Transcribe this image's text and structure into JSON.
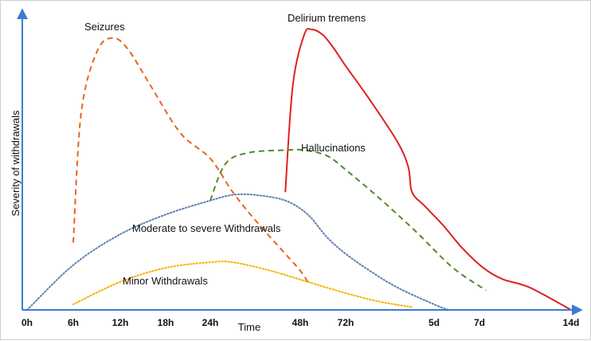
{
  "chart_data": {
    "type": "line",
    "title": "",
    "xlabel": "Time",
    "ylabel": "Severity of withdrawals",
    "x_ticks": [
      "0h",
      "6h",
      "12h",
      "18h",
      "24h",
      "48h",
      "72h",
      "5d",
      "7d",
      "14d"
    ],
    "x_tick_positions": [
      0,
      6,
      12,
      18,
      24,
      48,
      72,
      120,
      168,
      336
    ],
    "ylim": [
      0,
      100
    ],
    "grid": false,
    "legend": "none",
    "series": [
      {
        "name": "Seizures",
        "style": "dashed",
        "color": "#e8641e",
        "x": [
          6,
          7,
          9,
          11,
          13,
          16,
          20,
          24,
          30,
          36,
          44,
          48,
          52
        ],
        "y": [
          24,
          70,
          92,
          97,
          93,
          80,
          63,
          54,
          42,
          32,
          20,
          14,
          10
        ]
      },
      {
        "name": "Delirium tremens",
        "style": "solid",
        "color": "#e02020",
        "x": [
          44,
          46,
          50,
          54,
          60,
          66,
          72,
          85,
          100,
          106,
          108,
          115,
          130,
          150,
          175,
          210,
          260,
          336
        ],
        "y": [
          42,
          80,
          98,
          100,
          98,
          93,
          87,
          75,
          60,
          51,
          42,
          37,
          30,
          22,
          15,
          11,
          8,
          0
        ]
      },
      {
        "name": "Hallucinations",
        "style": "dashed",
        "color": "#4e8a2c",
        "x": [
          24,
          28,
          34,
          44,
          50,
          62,
          72,
          90,
          110,
          140,
          180
        ],
        "y": [
          39,
          52,
          56,
          57,
          57,
          55,
          50,
          40,
          28,
          15,
          7
        ]
      },
      {
        "name": "Moderate to severe Withdrawals",
        "style": "dotted",
        "color": "#5f7fae",
        "x": [
          0,
          6,
          12,
          18,
          24,
          30,
          36,
          44,
          52,
          62,
          72,
          85,
          100,
          120,
          135
        ],
        "y": [
          0,
          16,
          27,
          34,
          39,
          41,
          41,
          39,
          34,
          26,
          20,
          14,
          8,
          2,
          0
        ]
      },
      {
        "name": "Minor Withdrawals",
        "style": "dotted",
        "color": "#f4b400",
        "x": [
          6,
          12,
          18,
          24,
          30,
          40,
          52,
          72,
          90,
          108
        ],
        "y": [
          2,
          10,
          15,
          17,
          17,
          14,
          10,
          6,
          3,
          1
        ]
      }
    ],
    "annotations": [
      {
        "text": "Seizures",
        "series": "Seizures"
      },
      {
        "text": "Delirium tremens",
        "series": "Delirium tremens"
      },
      {
        "text": "Hallucinations",
        "series": "Hallucinations"
      },
      {
        "text": "Moderate to severe Withdrawals",
        "series": "Moderate to severe Withdrawals"
      },
      {
        "text": "Minor Withdrawals",
        "series": "Minor Withdrawals"
      }
    ],
    "axis_color": "#3a7bd5"
  }
}
